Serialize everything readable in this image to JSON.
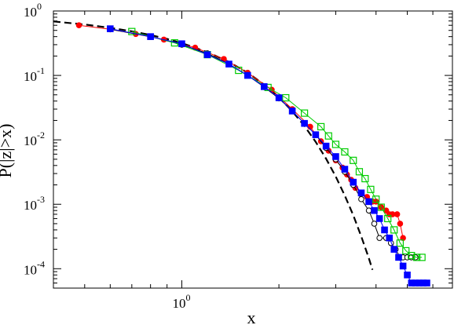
{
  "chart_data": {
    "type": "line",
    "title": "",
    "xlabel": "x",
    "ylabel": "P(|z|>x)",
    "x_scale": "log",
    "y_scale": "log",
    "xlim": [
      0.4,
      6.9
    ],
    "ylim": [
      5e-05,
      1.0
    ],
    "x_ticks": [
      {
        "value": 1.0,
        "base": "10",
        "exp": "0"
      }
    ],
    "y_ticks": [
      {
        "value": 1.0,
        "base": "10",
        "exp": "0"
      },
      {
        "value": 0.1,
        "base": "10",
        "exp": "-1"
      },
      {
        "value": 0.01,
        "base": "10",
        "exp": "-2"
      },
      {
        "value": 0.001,
        "base": "10",
        "exp": "-3"
      },
      {
        "value": 0.0001,
        "base": "10",
        "exp": "-4"
      }
    ],
    "grid": false,
    "legend": "none",
    "reference_curve": {
      "style": "dashed",
      "color": "#000000",
      "x": [
        0.4,
        0.5,
        0.6,
        0.7,
        0.8,
        0.9,
        1.0,
        1.2,
        1.4,
        1.6,
        1.8,
        2.0,
        2.2,
        2.4,
        2.6,
        2.8,
        3.0,
        3.2,
        3.4,
        3.6,
        3.8,
        3.9
      ],
      "y": [
        0.689,
        0.617,
        0.549,
        0.484,
        0.424,
        0.368,
        0.317,
        0.23,
        0.162,
        0.11,
        0.0719,
        0.0455,
        0.0278,
        0.0164,
        0.00932,
        0.00511,
        0.0027,
        0.00137,
        0.000674,
        0.000318,
        0.000145,
        9.62e-05
      ]
    },
    "series": [
      {
        "color": "#ff0000",
        "marker": "filled-circle",
        "x": [
          0.48,
          0.6,
          0.72,
          0.88,
          1.1,
          1.35,
          1.6,
          1.9,
          2.2,
          2.5,
          2.7,
          2.85,
          3.0,
          3.15,
          3.25,
          3.35,
          3.45,
          3.6,
          3.75,
          3.9,
          4.0,
          4.15,
          4.3,
          4.4,
          4.5,
          4.65,
          4.75,
          4.85
        ],
        "y": [
          0.6,
          0.52,
          0.44,
          0.36,
          0.27,
          0.18,
          0.11,
          0.06,
          0.03,
          0.016,
          0.0095,
          0.0068,
          0.0048,
          0.0037,
          0.0029,
          0.0024,
          0.0018,
          0.0015,
          0.0013,
          0.0011,
          0.0011,
          0.0009,
          0.0008,
          0.0007,
          0.0007,
          0.0007,
          0.0005,
          0.0003
        ]
      },
      {
        "color": "#000000",
        "marker": "open-circle",
        "x": [
          0.6,
          0.8,
          1.0,
          1.2,
          1.4,
          1.6,
          1.8,
          2.0,
          2.2,
          2.4,
          2.6,
          2.8,
          3.0,
          3.2,
          3.4,
          3.6,
          3.8,
          3.95,
          4.1,
          4.3,
          4.45,
          4.6,
          4.75,
          4.85,
          5.0,
          5.15,
          5.3
        ],
        "y": [
          0.52,
          0.4,
          0.3,
          0.22,
          0.15,
          0.1,
          0.066,
          0.044,
          0.028,
          0.018,
          0.012,
          0.0075,
          0.005,
          0.0032,
          0.002,
          0.0012,
          0.0008,
          0.0005,
          0.0003,
          0.0003,
          0.00025,
          0.0002,
          0.00015,
          0.00015,
          0.00015,
          0.00015,
          0.00015
        ]
      },
      {
        "color": "#00cc00",
        "marker": "open-square",
        "x": [
          0.7,
          0.95,
          1.2,
          1.5,
          1.85,
          2.1,
          2.4,
          2.7,
          2.85,
          3.0,
          3.2,
          3.4,
          3.55,
          3.7,
          3.85,
          4.0,
          4.15,
          4.35,
          4.55,
          4.75,
          4.95,
          5.15,
          5.35,
          5.55
        ],
        "y": [
          0.48,
          0.32,
          0.21,
          0.12,
          0.065,
          0.045,
          0.026,
          0.016,
          0.0115,
          0.0085,
          0.0065,
          0.0048,
          0.0032,
          0.0025,
          0.0017,
          0.0012,
          0.0009,
          0.0006,
          0.0004,
          0.00025,
          0.00019,
          0.00016,
          0.00015,
          0.00015
        ]
      },
      {
        "color": "#0000ff",
        "marker": "filled-square",
        "x": [
          0.6,
          0.8,
          1.0,
          1.2,
          1.4,
          1.6,
          1.8,
          2.0,
          2.2,
          2.4,
          2.6,
          2.8,
          3.0,
          3.2,
          3.4,
          3.6,
          3.8,
          3.95,
          4.1,
          4.25,
          4.4,
          4.55,
          4.7,
          4.85,
          5.0,
          5.15,
          5.3,
          5.45,
          5.6,
          5.75
        ],
        "y": [
          0.53,
          0.4,
          0.31,
          0.21,
          0.15,
          0.1,
          0.067,
          0.045,
          0.028,
          0.018,
          0.012,
          0.008,
          0.0055,
          0.0035,
          0.0022,
          0.0015,
          0.0011,
          0.0008,
          0.0006,
          0.0004,
          0.0003,
          0.0002,
          0.00015,
          0.00011,
          8e-05,
          6e-05,
          6e-05,
          6e-05,
          6e-05,
          6e-05
        ]
      }
    ]
  }
}
